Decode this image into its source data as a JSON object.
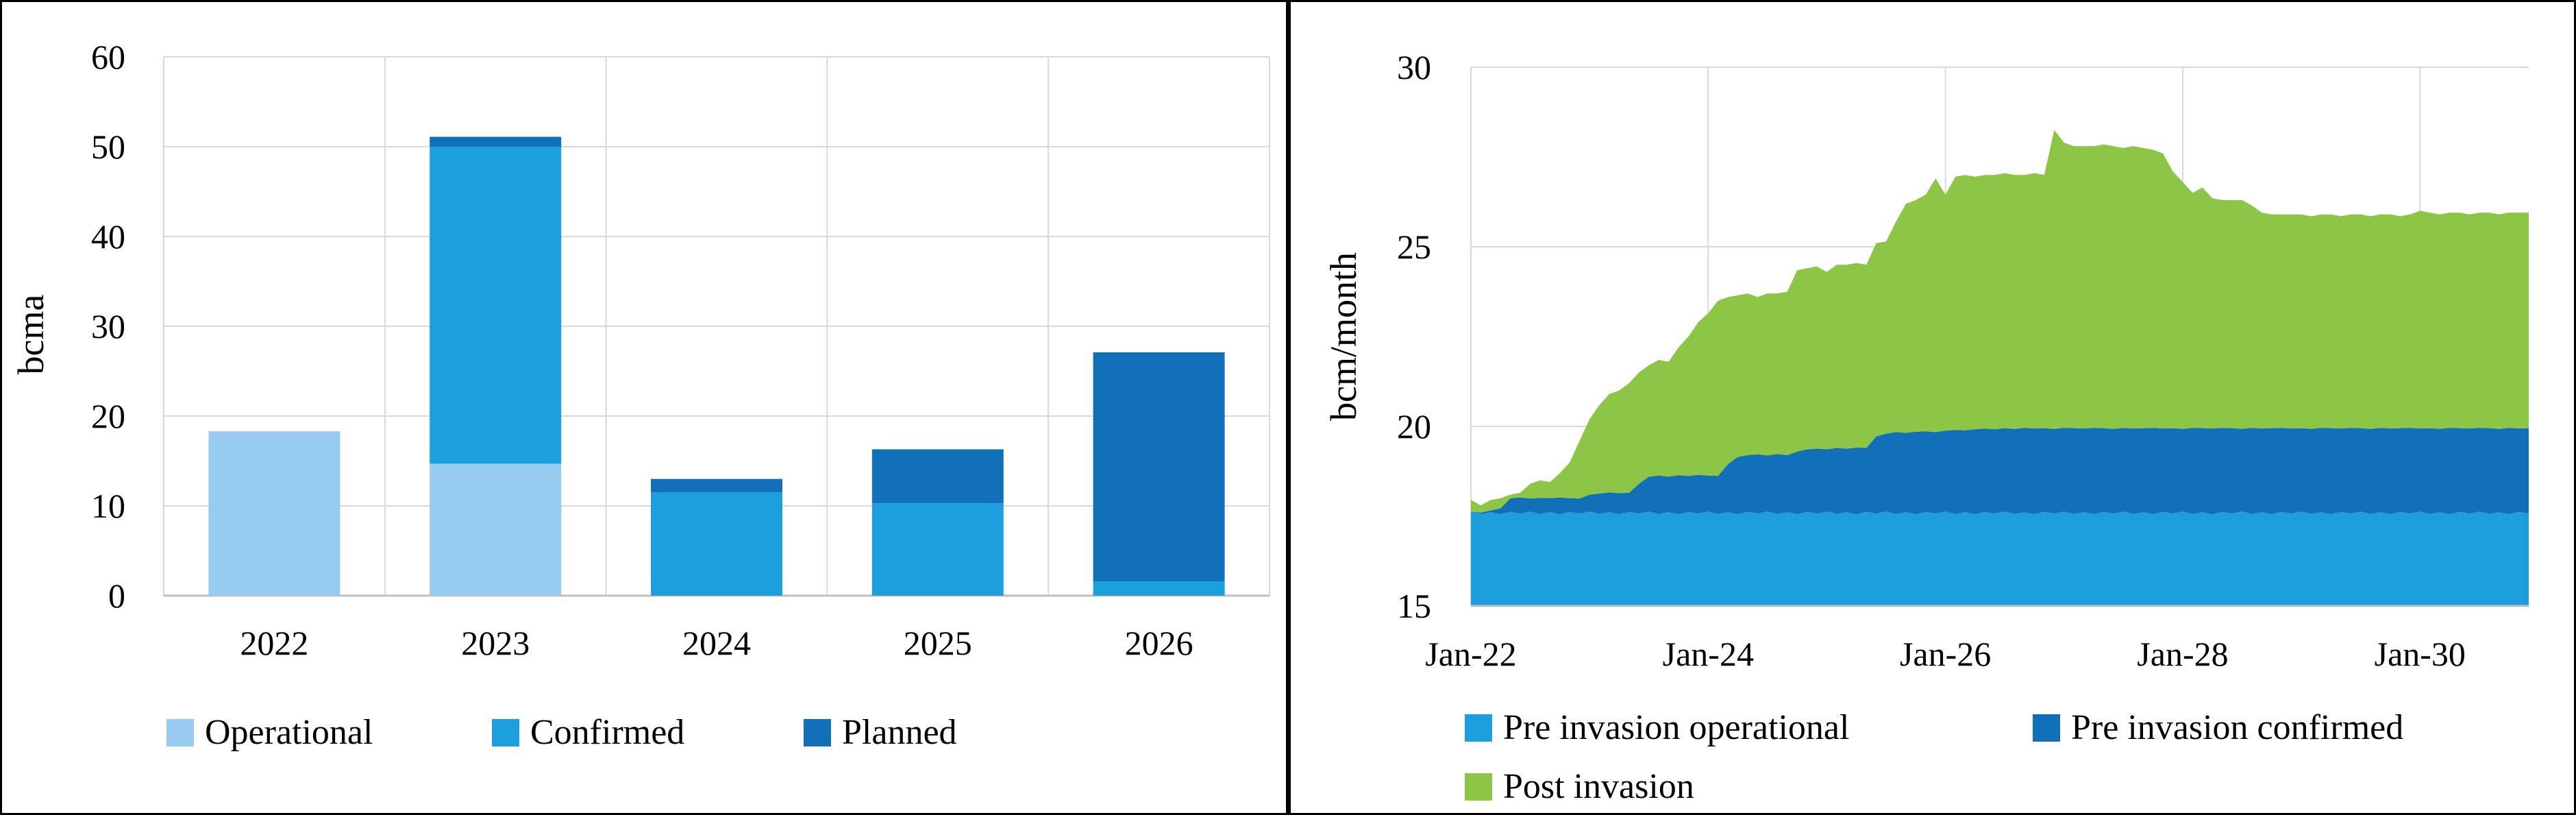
{
  "page": {
    "background": "#FFFFFF",
    "border_color": "#000000",
    "gridline_color": "#D9D9D9",
    "axis_line_color": "#BFBFBF",
    "text_color": "#000000"
  },
  "chart_data": [
    {
      "id": "lng-capacity-stacked-bar",
      "type": "bar",
      "stacked": true,
      "ylabel": "bcma",
      "xlabel": "",
      "ylim": [
        0,
        60
      ],
      "y_axis": {
        "title": "bcma",
        "min": 0,
        "max": 60,
        "ticks": [
          0,
          10,
          20,
          30,
          40,
          50,
          60
        ]
      },
      "categories": [
        "2022",
        "2023",
        "2024",
        "2025",
        "2026"
      ],
      "series": [
        {
          "name": "Operational",
          "color": "#97CCF0",
          "values": [
            18.3,
            14.7,
            0,
            0,
            0
          ]
        },
        {
          "name": "Confirmed",
          "color": "#1D9FDE",
          "values": [
            0,
            35.3,
            11.5,
            10.3,
            1.6
          ]
        },
        {
          "name": "Planned",
          "color": "#1170B8",
          "values": [
            0,
            1.1,
            1.5,
            6.0,
            25.5
          ]
        }
      ],
      "bar_totals": [
        18.3,
        51.1,
        13.0,
        16.3,
        27.1
      ],
      "legend": [
        "Operational",
        "Confirmed",
        "Planned"
      ],
      "legend_position": "bottom",
      "grid": true
    },
    {
      "id": "gas-flow-stacked-area",
      "type": "area",
      "stacked": true,
      "ylabel": "bcm/month",
      "xlabel": "",
      "ylim": [
        15,
        30
      ],
      "y_axis": {
        "title": "bcm/month",
        "min": 15,
        "max": 30,
        "ticks": [
          15,
          20,
          25,
          30
        ]
      },
      "x_axis": {
        "tick_labels": [
          "Jan-22",
          "Jan-24",
          "Jan-26",
          "Jan-28",
          "Jan-30"
        ],
        "tick_month_indices": [
          0,
          24,
          48,
          72,
          96
        ],
        "months_total": 108,
        "start": "Jan-22",
        "end": "Dec-30"
      },
      "note": "series values are absolute stack-top levels in bcm/month; band = distance to series below",
      "series": [
        {
          "name": "Pre invasion operational",
          "color": "#1D9FDE",
          "tops": [
            17.63,
            17.56,
            17.61,
            17.55,
            17.62,
            17.57,
            17.63,
            17.56,
            17.61,
            17.55,
            17.62,
            17.57,
            17.63,
            17.56,
            17.61,
            17.55,
            17.62,
            17.57,
            17.63,
            17.56,
            17.61,
            17.55,
            17.62,
            17.57,
            17.63,
            17.56,
            17.61,
            17.55,
            17.62,
            17.57,
            17.63,
            17.56,
            17.61,
            17.55,
            17.62,
            17.57,
            17.63,
            17.56,
            17.61,
            17.55,
            17.62,
            17.57,
            17.63,
            17.56,
            17.61,
            17.55,
            17.62,
            17.57,
            17.63,
            17.56,
            17.61,
            17.55,
            17.62,
            17.57,
            17.63,
            17.56,
            17.61,
            17.55,
            17.62,
            17.57,
            17.63,
            17.56,
            17.61,
            17.55,
            17.62,
            17.57,
            17.63,
            17.56,
            17.61,
            17.55,
            17.62,
            17.57,
            17.63,
            17.56,
            17.61,
            17.55,
            17.62,
            17.57,
            17.63,
            17.56,
            17.61,
            17.55,
            17.62,
            17.57,
            17.63,
            17.56,
            17.61,
            17.55,
            17.62,
            17.57,
            17.63,
            17.56,
            17.61,
            17.55,
            17.62,
            17.57,
            17.63,
            17.56,
            17.61,
            17.55,
            17.62,
            17.57,
            17.63,
            17.56,
            17.61,
            17.55,
            17.62,
            17.57
          ]
        },
        {
          "name": "Pre invasion confirmed",
          "color": "#1170B8",
          "tops": [
            17.63,
            17.6,
            17.66,
            17.72,
            18.0,
            18.02,
            17.99,
            18.01,
            18.0,
            18.02,
            18.0,
            17.99,
            18.1,
            18.13,
            18.16,
            18.14,
            18.15,
            18.4,
            18.6,
            18.63,
            18.6,
            18.64,
            18.62,
            18.65,
            18.63,
            18.62,
            18.95,
            19.15,
            19.2,
            19.22,
            19.19,
            19.23,
            19.2,
            19.3,
            19.36,
            19.38,
            19.36,
            19.4,
            19.38,
            19.41,
            19.4,
            19.72,
            19.8,
            19.84,
            19.82,
            19.85,
            19.86,
            19.84,
            19.88,
            19.9,
            19.89,
            19.92,
            19.94,
            19.92,
            19.95,
            19.93,
            19.96,
            19.94,
            19.95,
            19.93,
            19.96,
            19.95,
            19.94,
            19.96,
            19.95,
            19.93,
            19.96,
            19.94,
            19.95,
            19.96,
            19.94,
            19.95,
            19.93,
            19.96,
            19.95,
            19.94,
            19.96,
            19.95,
            19.93,
            19.96,
            19.94,
            19.95,
            19.96,
            19.94,
            19.95,
            19.93,
            19.96,
            19.95,
            19.94,
            19.96,
            19.95,
            19.93,
            19.96,
            19.94,
            19.95,
            19.96,
            19.94,
            19.95,
            19.93,
            19.96,
            19.95,
            19.94,
            19.96,
            19.95,
            19.93,
            19.96,
            19.94,
            19.95
          ]
        },
        {
          "name": "Post invasion",
          "color": "#8DC646",
          "tops": [
            17.95,
            17.8,
            17.95,
            18.0,
            18.1,
            18.15,
            18.4,
            18.5,
            18.45,
            18.7,
            19.0,
            19.6,
            20.2,
            20.6,
            20.9,
            21.0,
            21.2,
            21.5,
            21.7,
            21.85,
            21.8,
            22.2,
            22.5,
            22.9,
            23.15,
            23.5,
            23.6,
            23.65,
            23.7,
            23.6,
            23.7,
            23.7,
            23.75,
            24.35,
            24.4,
            24.45,
            24.3,
            24.5,
            24.5,
            24.55,
            24.5,
            25.1,
            25.15,
            25.7,
            26.2,
            26.3,
            26.45,
            26.9,
            26.45,
            26.95,
            27.0,
            26.95,
            27.0,
            27.0,
            27.05,
            27.0,
            27.0,
            27.05,
            27.0,
            28.25,
            27.9,
            27.8,
            27.8,
            27.8,
            27.85,
            27.8,
            27.75,
            27.8,
            27.75,
            27.7,
            27.6,
            27.1,
            26.8,
            26.5,
            26.65,
            26.35,
            26.3,
            26.3,
            26.3,
            26.15,
            25.95,
            25.9,
            25.9,
            25.9,
            25.9,
            25.85,
            25.9,
            25.9,
            25.85,
            25.9,
            25.9,
            25.85,
            25.9,
            25.9,
            25.85,
            25.9,
            26.0,
            25.95,
            25.9,
            25.95,
            25.95,
            25.9,
            25.95,
            25.95,
            25.9,
            25.95,
            25.95,
            25.95
          ]
        }
      ],
      "legend_rows": [
        [
          "Pre invasion operational",
          "Pre invasion confirmed"
        ],
        [
          "Post invasion"
        ]
      ],
      "legend_position": "bottom",
      "grid": true
    }
  ]
}
